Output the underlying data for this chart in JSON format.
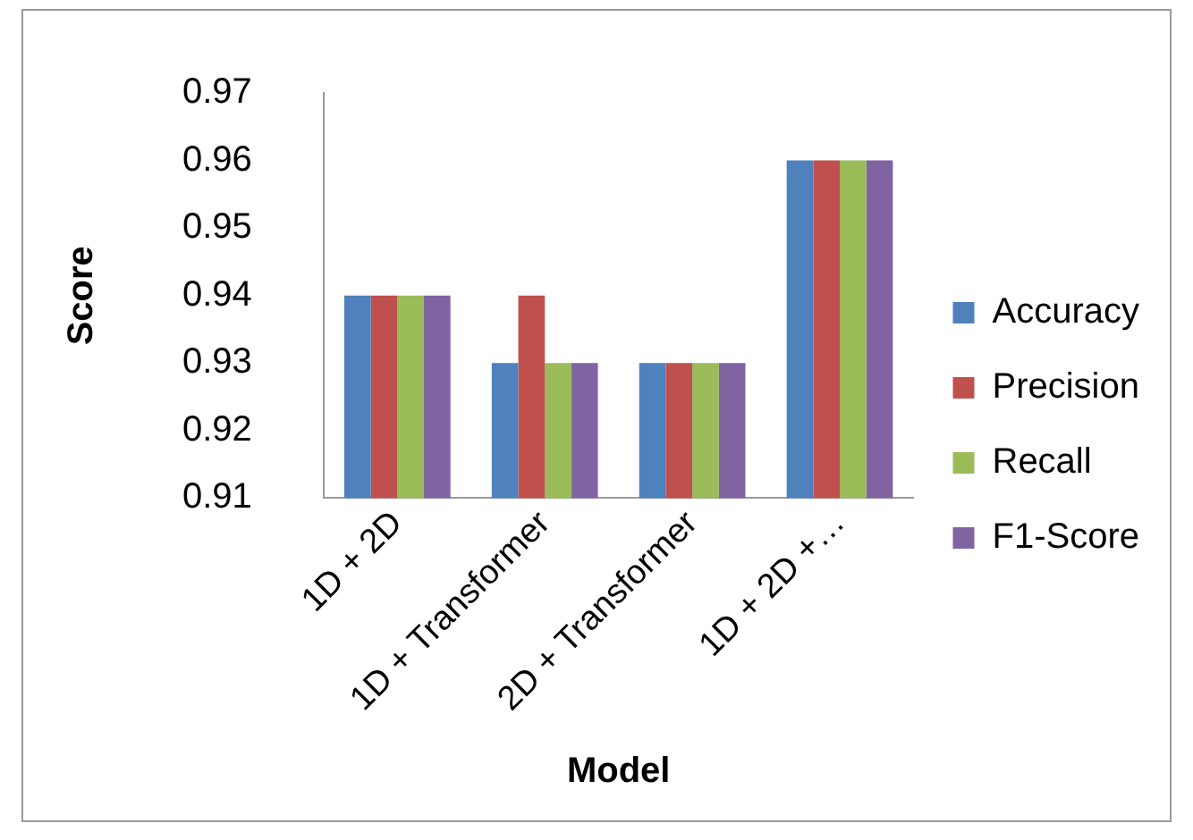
{
  "chart_data": {
    "type": "bar",
    "xlabel": "Model",
    "ylabel": "Score",
    "categories": [
      "1D + 2D",
      "1D + Transformer",
      "2D + Transformer",
      "1D + 2D +…"
    ],
    "series": [
      {
        "name": "Accuracy",
        "color": "#4f81bd",
        "values": [
          0.94,
          0.93,
          0.93,
          0.96
        ]
      },
      {
        "name": "Precision",
        "color": "#c0504d",
        "values": [
          0.94,
          0.94,
          0.93,
          0.96
        ]
      },
      {
        "name": "Recall",
        "color": "#9bbb59",
        "values": [
          0.94,
          0.93,
          0.93,
          0.96
        ]
      },
      {
        "name": "F1-Score",
        "color": "#8064a2",
        "values": [
          0.94,
          0.93,
          0.93,
          0.96
        ]
      }
    ],
    "ylim": [
      0.91,
      0.97
    ],
    "yticks": [
      0.91,
      0.92,
      0.93,
      0.94,
      0.95,
      0.96,
      0.97
    ],
    "grid": false,
    "legend": "right"
  }
}
